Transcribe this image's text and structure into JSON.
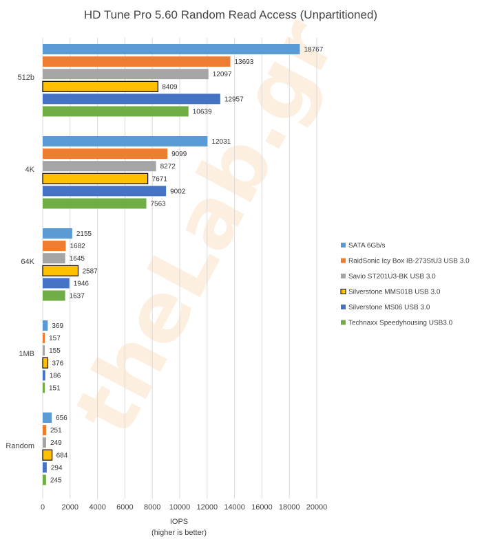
{
  "chart_data": {
    "type": "bar",
    "orientation": "horizontal",
    "title": "HD Tune Pro 5.60 Random Read Access (Unpartitioned)",
    "xlabel": "IOPS",
    "xlabel_note": "(higher is better)",
    "ylabel": "",
    "xlim": [
      0,
      20000
    ],
    "xticks": [
      0,
      2000,
      4000,
      6000,
      8000,
      10000,
      12000,
      14000,
      16000,
      18000,
      20000
    ],
    "grid": true,
    "legend_position": "right",
    "watermark": "theLab.gr",
    "categories": [
      "512b",
      "4K",
      "64K",
      "1MB",
      "Random"
    ],
    "series": [
      {
        "name": "SATA 6Gb/s",
        "color": "#5b9bd5",
        "outline": "",
        "values": [
          18767,
          12031,
          2155,
          369,
          656
        ]
      },
      {
        "name": "RaidSonic Icy Box IB-273StU3 USB 3.0",
        "color": "#ed7d31",
        "outline": "",
        "values": [
          13693,
          9099,
          1682,
          157,
          251
        ]
      },
      {
        "name": "Savio ST201U3-BK USB 3.0",
        "color": "#a5a5a5",
        "outline": "",
        "values": [
          12097,
          8272,
          1645,
          155,
          249
        ]
      },
      {
        "name": "Silverstone MMS01B USB 3.0",
        "color": "#ffc000",
        "outline": "#000000",
        "values": [
          8409,
          7671,
          2587,
          376,
          684
        ]
      },
      {
        "name": "Silverstone MS06 USB 3.0",
        "color": "#4472c4",
        "outline": "",
        "values": [
          12957,
          9002,
          1946,
          186,
          294
        ]
      },
      {
        "name": "Technaxx Speedyhousing USB3.0",
        "color": "#70ad47",
        "outline": "",
        "values": [
          10639,
          7563,
          1637,
          151,
          245
        ]
      }
    ]
  }
}
